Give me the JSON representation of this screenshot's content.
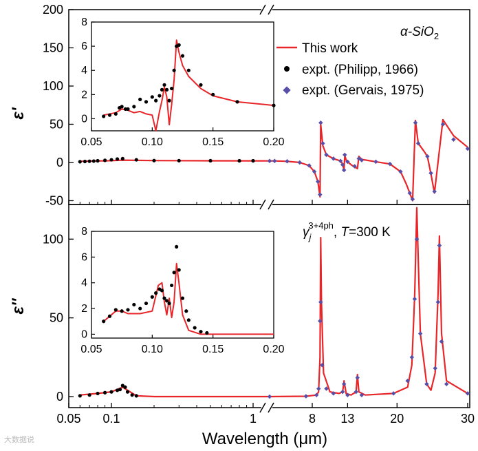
{
  "chart_data": [
    {
      "panel": "top",
      "type": "line",
      "title": "α-SiO2",
      "ylabel": "ε'",
      "xlabel": "Wavelength (μm)",
      "ylim": [
        -55,
        200
      ],
      "y_ticks": [
        -50,
        0,
        50,
        100,
        150,
        200
      ],
      "x_ticks": [
        "0.05",
        "0.1",
        "1",
        "8",
        "13",
        "20",
        "30"
      ],
      "legend": [
        "This work",
        "expt. (Philipp, 1966)",
        "expt. (Gervais, 1975)"
      ],
      "series": [
        {
          "name": "This work",
          "color": "#e8262a",
          "x": [
            0.06,
            0.075,
            0.09,
            0.12,
            0.2,
            0.5,
            1.0,
            1.2,
            2,
            4,
            6,
            7.5,
            8.3,
            8.8,
            9.1,
            9.2,
            9.3,
            9.5,
            10,
            11,
            12,
            12.3,
            12.5,
            12.6,
            12.8,
            13,
            13.5,
            14,
            14.4,
            14.6,
            15,
            17,
            19,
            20.5,
            21.3,
            21.8,
            22.2,
            22.6,
            23,
            23.8,
            24.3,
            24.8,
            25.3,
            26.5,
            28,
            30
          ],
          "y": [
            1.5,
            2,
            2,
            3,
            2.5,
            2.2,
            2.1,
            2,
            2,
            1.5,
            0,
            -4,
            -12,
            -25,
            -45,
            50,
            40,
            22,
            10,
            5,
            2,
            -2,
            -10,
            9,
            3,
            1,
            -3,
            -6,
            -8,
            8,
            4,
            1,
            -2,
            -12,
            -28,
            -40,
            -50,
            55,
            25,
            15,
            8,
            -15,
            -40,
            56,
            35,
            20
          ]
        },
        {
          "name": "expt. (Philipp, 1966)",
          "color": "#000000",
          "x": [
            0.06,
            0.065,
            0.07,
            0.075,
            0.08,
            0.09,
            0.1,
            0.11,
            0.12,
            0.15,
            0.2,
            0.3,
            0.5,
            0.8,
            1.0
          ],
          "y": [
            1,
            1.3,
            1.6,
            1.8,
            2.2,
            2.8,
            3.5,
            4.5,
            5,
            3.5,
            2.5,
            2.4,
            2.3,
            2.2,
            2.2
          ]
        },
        {
          "name": "expt. (Gervais, 1975)",
          "color": "#5a4fa6",
          "x": [
            1.2,
            2,
            4,
            6,
            7.5,
            8.3,
            8.8,
            9.1,
            9.2,
            9.5,
            10,
            11,
            12,
            12.3,
            12.5,
            12.6,
            13,
            14,
            14.6,
            15,
            17,
            19,
            20.5,
            21.8,
            22.2,
            22.6,
            23,
            24.3,
            24.8,
            25.3,
            26.5,
            28,
            30
          ],
          "y": [
            2,
            2,
            1.5,
            0,
            -4,
            -12,
            -25,
            -42,
            52,
            25,
            10,
            5,
            2,
            -3,
            -10,
            10,
            1,
            -5,
            5,
            3,
            1,
            -2,
            -12,
            -40,
            -48,
            52,
            25,
            8,
            -14,
            -38,
            50,
            30,
            18
          ]
        }
      ],
      "inset": {
        "xlim": [
          0.05,
          0.2
        ],
        "ylim": [
          -1,
          8
        ],
        "x_ticks": [
          "0.05",
          "0.10",
          "0.15",
          "0.20"
        ],
        "y_ticks": [
          "0",
          "2",
          "4",
          "6",
          "8"
        ],
        "series": [
          {
            "name": "This work",
            "x": [
              0.06,
              0.07,
              0.075,
              0.08,
              0.085,
              0.09,
              0.095,
              0.1,
              0.103,
              0.106,
              0.108,
              0.11,
              0.112,
              0.114,
              0.116,
              0.118,
              0.12,
              0.122,
              0.125,
              0.13,
              0.14,
              0.15,
              0.17,
              0.2
            ],
            "y": [
              0.3,
              0.5,
              0.8,
              0.7,
              0.5,
              0.6,
              0.4,
              0.3,
              -1.0,
              0.6,
              1.5,
              2.6,
              1.8,
              -0.5,
              1.2,
              3.2,
              6.5,
              5.5,
              4.4,
              3.5,
              2.5,
              1.9,
              1.4,
              1.1
            ]
          },
          {
            "name": "expt. (Philipp, 1966)",
            "x": [
              0.06,
              0.065,
              0.07,
              0.073,
              0.075,
              0.078,
              0.08,
              0.085,
              0.09,
              0.095,
              0.1,
              0.103,
              0.106,
              0.108,
              0.11,
              0.112,
              0.114,
              0.116,
              0.118,
              0.12,
              0.122,
              0.125,
              0.13,
              0.14,
              0.15,
              0.17,
              0.2
            ],
            "y": [
              0.2,
              0.3,
              0.4,
              0.9,
              1.0,
              0.8,
              0.8,
              1.0,
              1.6,
              1.4,
              1.8,
              1.5,
              1.9,
              2.4,
              2.8,
              2.4,
              1.5,
              2.5,
              4.0,
              6.0,
              6.1,
              5.2,
              4.0,
              2.8,
              2.0,
              1.4,
              1.1
            ]
          }
        ]
      }
    },
    {
      "panel": "bottom",
      "type": "line",
      "ylabel": "ε''",
      "xlabel": "Wavelength (μm)",
      "annotation": "γj^(3+4ph), T=300 K",
      "ylim": [
        -7,
        122
      ],
      "y_ticks": [
        0,
        50,
        100
      ],
      "x_ticks": [
        "0.05",
        "0.1",
        "1",
        "8",
        "13",
        "20",
        "30"
      ],
      "series": [
        {
          "name": "This work",
          "color": "#e8262a",
          "x": [
            0.06,
            0.08,
            0.1,
            0.12,
            0.15,
            0.2,
            1.0,
            1.2,
            7,
            8.6,
            8.9,
            9.1,
            9.2,
            9.3,
            9.6,
            10.5,
            11.8,
            12.3,
            12.5,
            12.8,
            13.5,
            14.2,
            14.4,
            14.6,
            15.5,
            19.5,
            21.5,
            22.1,
            22.5,
            22.8,
            23.3,
            24.2,
            24.8,
            25.4,
            25.8,
            26.0,
            26.3,
            27,
            30
          ],
          "y": [
            1,
            2,
            3,
            6,
            0.5,
            0,
            0,
            0,
            0.2,
            1,
            3,
            25,
            101,
            60,
            15,
            3,
            2,
            3,
            10,
            2,
            1,
            3,
            14,
            3,
            1,
            2,
            6,
            20,
            65,
            120,
            40,
            8,
            4,
            15,
            65,
            102,
            40,
            10,
            2
          ]
        },
        {
          "name": "expt. (Philipp, 1966)",
          "color": "#000000",
          "x": [
            0.06,
            0.07,
            0.08,
            0.09,
            0.1,
            0.11,
            0.115,
            0.12,
            0.125,
            0.13,
            0.14,
            0.15
          ],
          "y": [
            0.5,
            1,
            2,
            2.5,
            3,
            4,
            4.5,
            7,
            6,
            3,
            1,
            0.5
          ]
        },
        {
          "name": "expt. (Gervais, 1975)",
          "color": "#5a4fa6",
          "x": [
            1.2,
            7,
            8.6,
            8.9,
            9.1,
            9.2,
            9.4,
            10,
            11,
            12.3,
            12.5,
            13,
            14.2,
            14.4,
            15,
            19.5,
            21.5,
            22.1,
            22.5,
            22.8,
            23.3,
            24.2,
            25.4,
            25.8,
            26.0,
            26.3,
            27,
            30
          ],
          "y": [
            0,
            0.2,
            1,
            5,
            48,
            60,
            20,
            5,
            2,
            3,
            8,
            1,
            3,
            12,
            1,
            2,
            10,
            25,
            62,
            100,
            40,
            8,
            18,
            60,
            96,
            35,
            8,
            2
          ]
        }
      ],
      "inset": {
        "xlim": [
          0.05,
          0.2
        ],
        "ylim": [
          -0.3,
          8
        ],
        "x_ticks": [
          "0.05",
          "0.10",
          "0.15",
          "0.20"
        ],
        "y_ticks": [
          "0",
          "2",
          "4",
          "6",
          "8"
        ],
        "series": [
          {
            "name": "This work",
            "x": [
              0.06,
              0.07,
              0.075,
              0.08,
              0.09,
              0.1,
              0.105,
              0.108,
              0.11,
              0.112,
              0.114,
              0.116,
              0.118,
              0.12,
              0.122,
              0.125,
              0.13,
              0.14,
              0.15,
              0.2
            ],
            "y": [
              1,
              1.8,
              1.8,
              1.6,
              1.6,
              1.8,
              3.8,
              4.0,
              2.5,
              1.5,
              2.8,
              1.3,
              2.5,
              5.5,
              4.0,
              1.5,
              0.3,
              0,
              0,
              0
            ]
          },
          {
            "name": "expt. (Philipp, 1966)",
            "x": [
              0.06,
              0.065,
              0.07,
              0.075,
              0.08,
              0.085,
              0.09,
              0.095,
              0.1,
              0.103,
              0.106,
              0.108,
              0.11,
              0.112,
              0.114,
              0.116,
              0.118,
              0.12,
              0.122,
              0.125,
              0.128,
              0.13,
              0.135,
              0.14,
              0.145
            ],
            "y": [
              1.0,
              1.4,
              1.9,
              1.8,
              1.9,
              2.3,
              2.0,
              2.4,
              2.9,
              3.2,
              3.5,
              3.4,
              2.8,
              2.6,
              2.4,
              3.8,
              4.8,
              6.8,
              5.0,
              2.8,
              1.8,
              1.1,
              0.5,
              0.2,
              0.1
            ]
          }
        ]
      }
    }
  ],
  "legend_title": "α-SiO",
  "legend_title_sub": "2",
  "xlabel": "Wavelength (μm)",
  "top_ylabel": "ε'",
  "bottom_ylabel": "ε''",
  "annotation_gamma": "γ",
  "annotation_sub": "j",
  "annotation_sup": "3+4ph",
  "annotation_temp_T": "T",
  "annotation_temp_rest": "=300 K",
  "watermark": "大数据说"
}
